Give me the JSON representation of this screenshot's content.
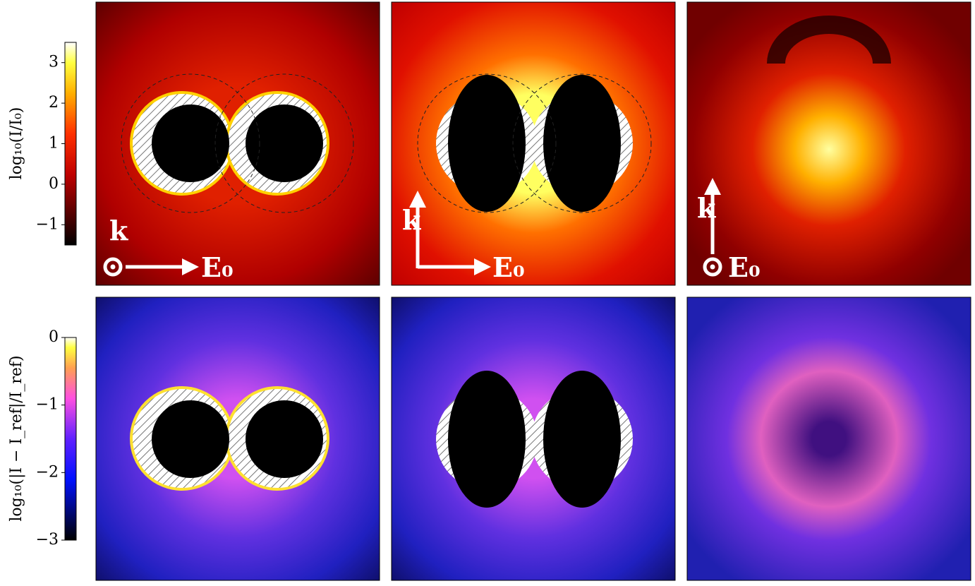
{
  "chart_data": [
    {
      "type": "heatmap",
      "colormap": "hot",
      "colorbar_label": "log₁₀(I/I₀)",
      "ylim": [
        -1.5,
        3.5
      ],
      "yticks": [
        {
          "value": -1,
          "label": "−1"
        },
        0,
        1,
        2,
        3
      ],
      "annotations": [
        [
          "k",
          "E₀"
        ],
        [
          "k",
          "E₀"
        ],
        [
          "k",
          "E₀"
        ]
      ]
    },
    {
      "type": "heatmap",
      "colormap": "gnuplot2",
      "colorbar_label": "log₁₀(|I − I_ref|/I_ref)",
      "ylim": [
        -3,
        0
      ],
      "yticks": [
        {
          "value": -3,
          "label": "−3"
        },
        {
          "value": -2,
          "label": "−2"
        },
        {
          "value": -1,
          "label": "−1"
        },
        0
      ]
    }
  ]
}
